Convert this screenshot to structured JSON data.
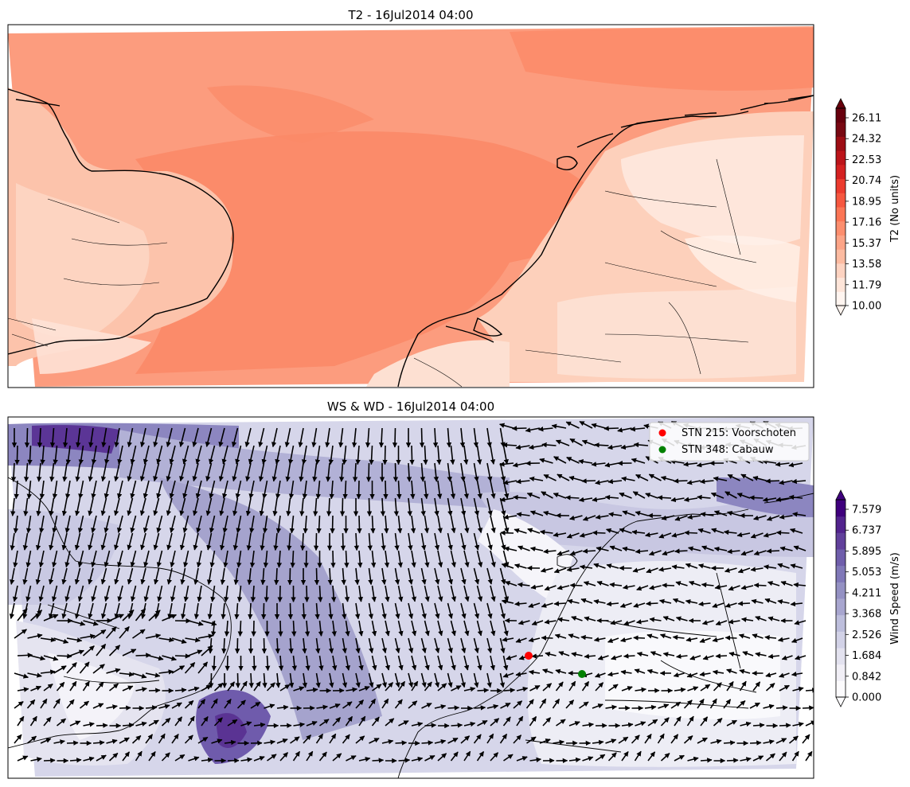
{
  "figure": {
    "top_panel": {
      "title": "T2 - 16Jul2014 04:00",
      "colorbar": {
        "label": "T2 (No units)",
        "ticks": [
          "26.11",
          "24.32",
          "22.53",
          "20.74",
          "18.95",
          "17.16",
          "15.37",
          "13.58",
          "11.79",
          "10.00"
        ],
        "colors": [
          "#fff5f0",
          "#fee5d9",
          "#fdd3c1",
          "#fcbba1",
          "#fca487",
          "#fc8e6e",
          "#fb7555",
          "#f6573f",
          "#ec3b2e",
          "#d42121",
          "#bc141a",
          "#9d0d14",
          "#780812",
          "#67000d"
        ]
      }
    },
    "bottom_panel": {
      "title": "WS & WD - 16Jul2014 04:00",
      "colorbar": {
        "label": "Wind Speed (m/s)",
        "ticks": [
          "7.579",
          "6.737",
          "5.895",
          "5.053",
          "4.211",
          "3.368",
          "2.526",
          "1.684",
          "0.842",
          "0.000"
        ],
        "colors": [
          "#fcfbfd",
          "#f1eff6",
          "#e3e2ef",
          "#d2d2e7",
          "#bdbedc",
          "#a8a6cf",
          "#9491c3",
          "#8078b8",
          "#6f5eab",
          "#61409b",
          "#52238d",
          "#3f007d"
        ]
      },
      "legend": [
        {
          "label": "STN 215: Voorschoten",
          "color": "#ff0000"
        },
        {
          "label": "STN 348: Cabauw",
          "color": "#008000"
        }
      ]
    }
  }
}
